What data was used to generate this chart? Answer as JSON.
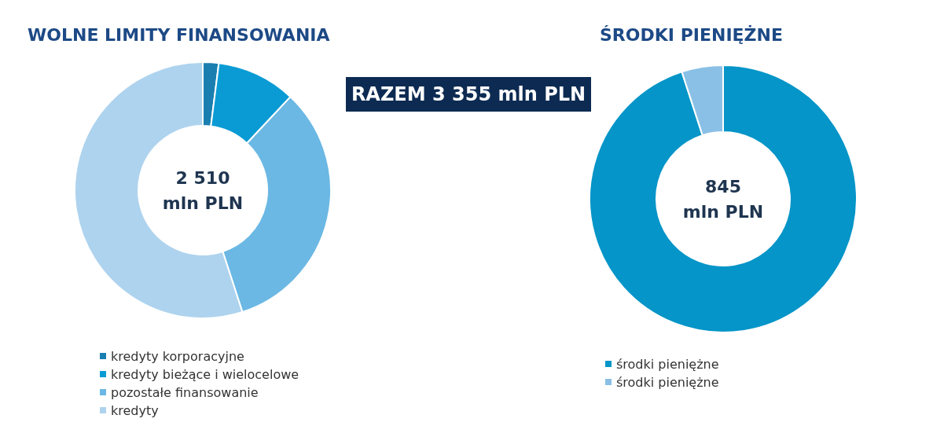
{
  "chart_data": [
    {
      "type": "donut",
      "title": "WOLNE LIMITY FINANSOWANIA",
      "categories": [
        "kredyty korporacyjne",
        "kredyty bieżące i wielocelowe",
        "pozostałe finansowanie",
        "kredyty"
      ],
      "values": [
        2,
        10,
        33,
        55
      ],
      "colors": [
        "#1a7fb0",
        "#0a9bd4",
        "#6bb8e4",
        "#aed3ee"
      ],
      "legend": "bottom left",
      "annotations": [
        "2 510\nmln PLN",
        "RAZEM 3 355 mln PLN"
      ]
    },
    {
      "type": "donut",
      "title": "ŚRODKI PIENIĘŻNE",
      "categories": [
        "środki pieniężne",
        "środki pieniężne"
      ],
      "values": [
        95,
        5
      ],
      "colors": [
        "#0595c8",
        "#8ac0e6"
      ],
      "legend": "bottom left",
      "annotations": [
        "845\nmln PLN"
      ]
    }
  ]
}
